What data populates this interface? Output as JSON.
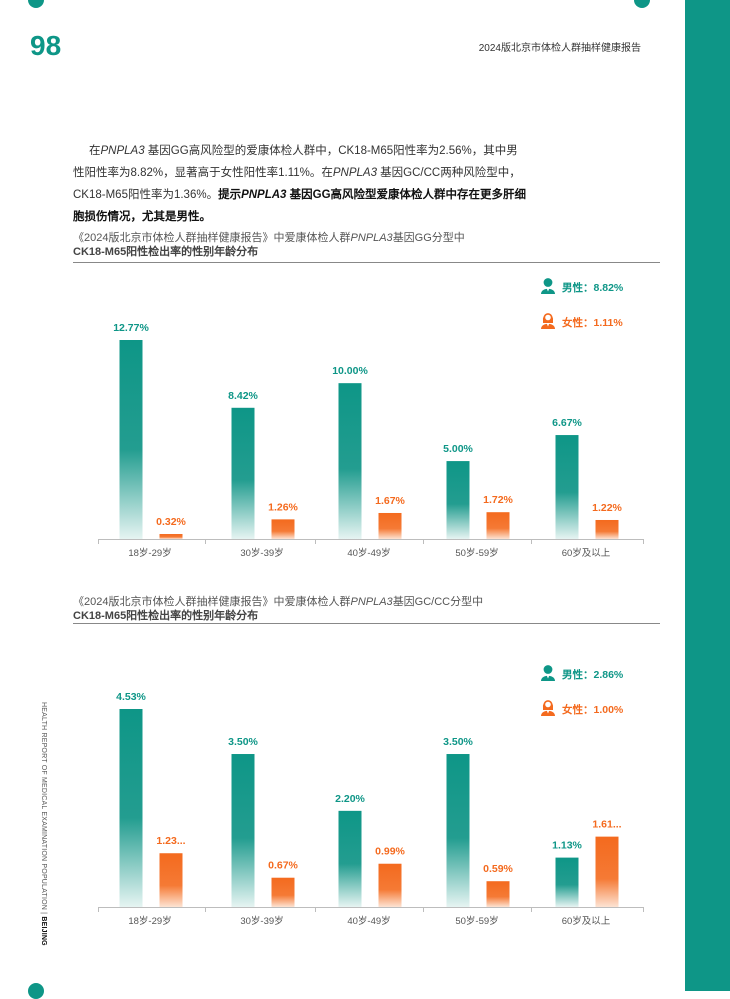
{
  "page": {
    "number": "98",
    "report_title": "2024版北京市体检人群抽样健康报告",
    "side_text": "HEALTH REPORT OF MEDICAL EXAMINATION POPULATION",
    "side_text_bold": "BEIJING",
    "sidebar_color": "#0e9687"
  },
  "paragraph": {
    "p1": "在",
    "gene1": "PNPLA3",
    "p2": " 基因GG高风险型的爱康体检人群中，CK18-M65阳性率为2.56%，其中男性阳性率为8.82%，显著高于女性阳性率1.11%。在",
    "gene2": "PNPLA3",
    "p3": " 基因GC/CC两种风险型中，CK18-M65阳性率为1.36%。",
    "bold1": "提示",
    "bold_gene": "PNPLA3",
    "bold2": " 基因GG高风险型爱康体检人群中存在更多肝细胞损伤情况，尤其是男性。"
  },
  "chart1_title": {
    "a": "《2024版北京市体检人群抽样健康报告》中爱康体检人群",
    "gene": "PNPLA3",
    "b": "基因GG分型中",
    "line2": "CK18-M65阳性检出率的性别年龄分布"
  },
  "chart2_title": {
    "a": "《2024版北京市体检人群抽样健康报告》中爱康体检人群",
    "gene": "PNPLA3",
    "b": "基因GC/CC分型中",
    "line2": "CK18-M65阳性检出率的性别年龄分布"
  },
  "chart_data": [
    {
      "type": "bar",
      "title": "CK18-M65阳性检出率的性别年龄分布",
      "categories": [
        "18岁-29岁",
        "30岁-39岁",
        "40岁-49岁",
        "50岁-59岁",
        "60岁及以上"
      ],
      "series": [
        {
          "name": "男性",
          "color": "#0e9687",
          "values": [
            12.77,
            8.42,
            10.0,
            5.0,
            6.67
          ],
          "labels": [
            "12.77%",
            "8.42%",
            "10.00%",
            "5.00%",
            "6.67%"
          ]
        },
        {
          "name": "女性",
          "color": "#f46a1e",
          "values": [
            0.32,
            1.26,
            1.67,
            1.72,
            1.22
          ],
          "labels": [
            "0.32%",
            "1.26%",
            "1.67%",
            "1.72%",
            "1.22%"
          ]
        }
      ],
      "legend": [
        {
          "label": "男性：8.82%",
          "icon": "male-person-icon",
          "color": "#0e9687"
        },
        {
          "label": "女性：1.11%",
          "icon": "female-person-icon",
          "color": "#f46a1e"
        }
      ],
      "ylim": [
        0,
        14
      ],
      "grid": false
    },
    {
      "type": "bar",
      "title": "CK18-M65阳性检出率的性别年龄分布",
      "categories": [
        "18岁-29岁",
        "30岁-39岁",
        "40岁-49岁",
        "50岁-59岁",
        "60岁及以上"
      ],
      "series": [
        {
          "name": "男性",
          "color": "#0e9687",
          "values": [
            4.53,
            3.5,
            2.2,
            3.5,
            1.13
          ],
          "labels": [
            "4.53%",
            "3.50%",
            "2.20%",
            "3.50%",
            "1.13%"
          ]
        },
        {
          "name": "女性",
          "color": "#f46a1e",
          "values": [
            1.23,
            0.67,
            0.99,
            0.59,
            1.61
          ],
          "labels": [
            "1.23...",
            "0.67%",
            "0.99%",
            "0.59%",
            "1.61..."
          ]
        }
      ],
      "legend": [
        {
          "label": "男性：2.86%",
          "icon": "male-person-icon",
          "color": "#0e9687"
        },
        {
          "label": "女性：1.00%",
          "icon": "female-person-icon",
          "color": "#f46a1e"
        }
      ],
      "ylim": [
        0,
        5.0
      ],
      "grid": false
    }
  ]
}
